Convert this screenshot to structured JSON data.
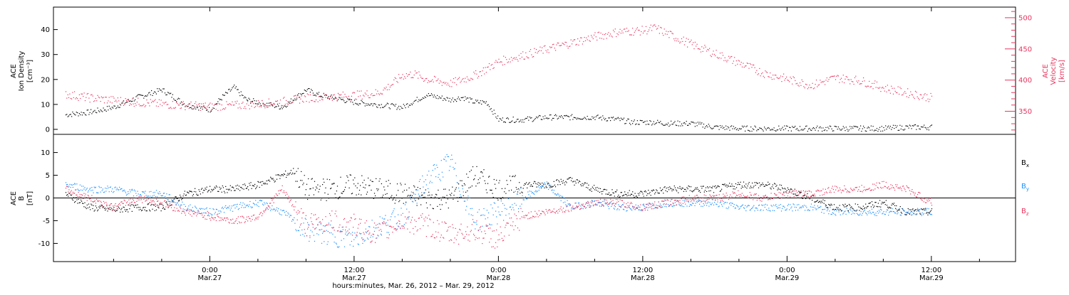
{
  "chart_data": [
    {
      "type": "scatter",
      "panel": "top",
      "ylabel_left": [
        "ACE",
        "Ion Density",
        "[cm⁻³]"
      ],
      "ylabel_right": [
        "ACE",
        "Velocity",
        "[km/s]"
      ],
      "ylim_left": [
        -2,
        49
      ],
      "ylim_right": [
        313,
        517
      ],
      "yticks_left": [
        "0",
        "10",
        "20",
        "30",
        "40"
      ],
      "yticks_left_values": [
        0,
        10,
        20,
        30,
        40
      ],
      "yticks_right": [
        "350",
        "400",
        "450",
        "500"
      ],
      "yticks_right_values": [
        350,
        400,
        450,
        500
      ],
      "colors": {
        "density": "#000000",
        "velocity": "#e8365f"
      },
      "series": [
        {
          "key": "density",
          "x": [
            -12,
            -10,
            -8,
            -6,
            -4,
            -2,
            0,
            1,
            2,
            3,
            4,
            6,
            8,
            9,
            10,
            12,
            14,
            16,
            18,
            20,
            21,
            22,
            23,
            24,
            26,
            28,
            30,
            32,
            34,
            35,
            36,
            37,
            38,
            40,
            42,
            44,
            46,
            48,
            50,
            52,
            54,
            56,
            58,
            60
          ],
          "y": [
            6,
            7,
            9,
            13,
            16,
            10,
            8,
            13,
            17,
            12,
            11,
            9,
            16,
            14,
            13,
            11,
            10,
            9,
            14,
            12,
            13,
            11,
            11,
            4,
            4,
            5,
            5,
            5,
            4,
            3,
            3,
            3,
            2.5,
            2.5,
            1,
            0.5,
            0.5,
            0.5,
            0.5,
            0.5,
            0.5,
            0.5,
            1,
            1
          ]
        },
        {
          "key": "velocity",
          "x": [
            -12,
            -10,
            -8,
            -6,
            -4,
            -2,
            0,
            2,
            4,
            6,
            8,
            10,
            12,
            14,
            15,
            16,
            17,
            18,
            20,
            22,
            24,
            26,
            28,
            30,
            32,
            34,
            36,
            37,
            38,
            40,
            42,
            44,
            46,
            48,
            50,
            52,
            54,
            56,
            58,
            60
          ],
          "y": [
            378,
            372,
            368,
            365,
            362,
            360,
            358,
            360,
            362,
            366,
            372,
            374,
            376,
            380,
            392,
            408,
            410,
            402,
            395,
            408,
            430,
            440,
            450,
            460,
            470,
            478,
            480,
            484,
            475,
            458,
            443,
            428,
            412,
            402,
            392,
            404,
            400,
            388,
            380,
            372
          ]
        }
      ]
    },
    {
      "type": "scatter",
      "panel": "bottom",
      "ylabel_left": [
        "ACE",
        "B",
        "[nT]"
      ],
      "ylim": [
        -14,
        14
      ],
      "yticks": [
        "-10",
        "-5",
        "0",
        "5",
        "10"
      ],
      "yticks_values": [
        -10,
        -5,
        0,
        5,
        10
      ],
      "legend_position": "right",
      "legend": [
        {
          "main": "B",
          "sub": "x",
          "color": "#000000"
        },
        {
          "main": "B",
          "sub": "y",
          "color": "#1e90ff"
        },
        {
          "main": "B",
          "sub": "z",
          "color": "#e8365f"
        }
      ],
      "series": [
        {
          "key": "bx",
          "color": "#000000",
          "x": [
            -12,
            -10,
            -8,
            -6,
            -4,
            -2,
            0,
            2,
            4,
            6,
            7,
            8,
            10,
            12,
            14,
            16,
            18,
            20,
            22,
            24,
            26,
            28,
            30,
            32,
            34,
            36,
            38,
            40,
            42,
            44,
            46,
            48,
            50,
            52,
            54,
            56,
            58,
            60
          ],
          "y": [
            1,
            -2,
            -2.5,
            -2,
            -2,
            1,
            2,
            2,
            3,
            5,
            6,
            2,
            2,
            3,
            2,
            1,
            0,
            0,
            5,
            2,
            3,
            3,
            4,
            2,
            1,
            1,
            2,
            2,
            2,
            3,
            3,
            2,
            0,
            -2,
            -2,
            -1,
            -3,
            -3
          ]
        },
        {
          "key": "by",
          "color": "#1e90ff",
          "x": [
            -12,
            -10,
            -8,
            -6,
            -4,
            -2,
            0,
            2,
            4,
            6,
            8,
            10,
            12,
            14,
            16,
            18,
            20,
            22,
            24,
            26,
            28,
            30,
            32,
            34,
            36,
            38,
            40,
            42,
            44,
            46,
            48,
            50,
            52,
            54,
            56,
            58,
            60
          ],
          "y": [
            3,
            2,
            2,
            1,
            1,
            -2,
            -3,
            -2,
            -1,
            -3,
            -7,
            -8,
            -9,
            -6,
            -4,
            4,
            8,
            -5,
            -3,
            0,
            3,
            -2,
            -1,
            -2,
            -2,
            -1,
            -1,
            -1,
            -2,
            -2,
            -2,
            -2,
            -3,
            -3,
            -3,
            -3,
            -3
          ]
        },
        {
          "key": "bz",
          "color": "#e8365f",
          "x": [
            -12,
            -10,
            -8,
            -6,
            -4,
            -2,
            0,
            2,
            4,
            6,
            8,
            10,
            12,
            14,
            16,
            18,
            20,
            22,
            24,
            26,
            28,
            30,
            32,
            34,
            36,
            38,
            40,
            42,
            44,
            46,
            48,
            50,
            52,
            54,
            56,
            58,
            60
          ],
          "y": [
            2,
            0,
            -2,
            0,
            -1,
            -3,
            -4,
            -5,
            -4,
            2,
            -6,
            -5,
            -6,
            -8,
            -5,
            -6,
            -8,
            -7,
            -9,
            -4,
            -3,
            -2,
            -1,
            -1,
            -2,
            -1,
            0,
            0,
            1,
            0,
            1,
            1,
            2,
            2,
            3,
            2,
            -1
          ]
        }
      ]
    }
  ],
  "x_axis": {
    "xlim": [
      -13,
      67
    ],
    "ticks": [
      {
        "x": 0,
        "time": "0:00",
        "date": "Mar.27"
      },
      {
        "x": 12,
        "time": "12:00",
        "date": "Mar.27"
      },
      {
        "x": 24,
        "time": "0:00",
        "date": "Mar.28"
      },
      {
        "x": 36,
        "time": "12:00",
        "date": "Mar.28"
      },
      {
        "x": 48,
        "time": "0:00",
        "date": "Mar.29"
      },
      {
        "x": 60,
        "time": "12:00",
        "date": "Mar.29"
      }
    ],
    "title": "hours:minutes, Mar. 26, 2012 – Mar. 29, 2012"
  }
}
